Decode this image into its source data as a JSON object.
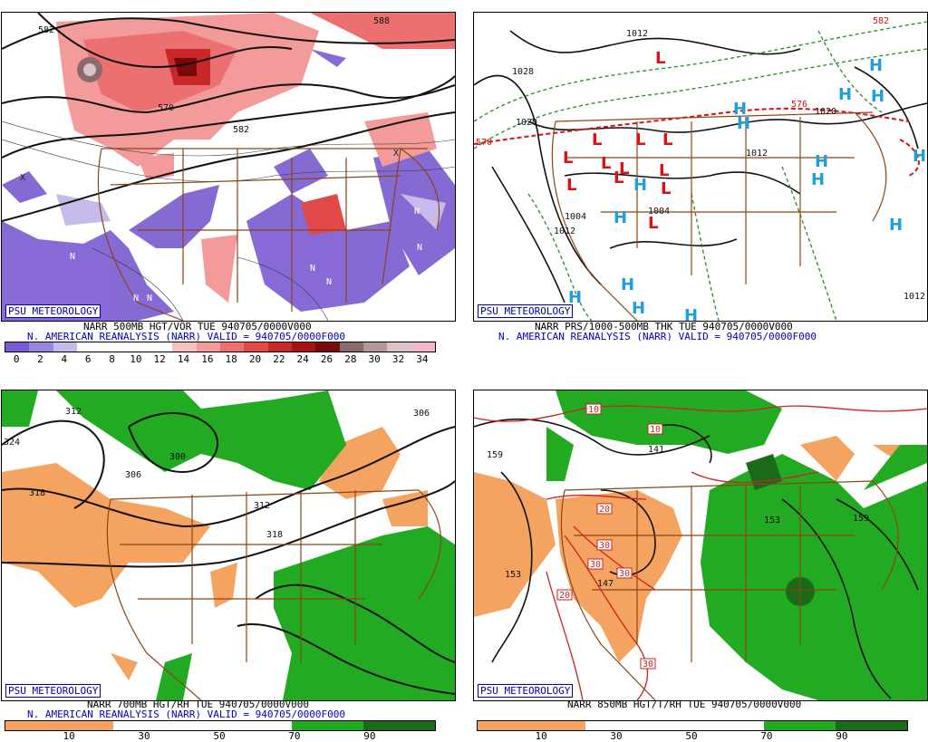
{
  "branding": "PSU METEOROLOGY",
  "source_line": "N. AMERICAN REANALYSIS (NARR) VALID = 940705/0000F000",
  "panels": {
    "vorticity": {
      "title": "NARR 500MB HGT/VOR TUE 940705/0000V000",
      "contour_labels": [
        "582",
        "570",
        "582",
        "588"
      ],
      "n_labels": [
        "N",
        "N",
        "N",
        "N",
        "N",
        "N",
        "N",
        "N",
        "N"
      ],
      "x_labels": [
        "X",
        "X"
      ],
      "colorbar_ticks": [
        "0",
        "2",
        "4",
        "6",
        "8",
        "10",
        "12",
        "14",
        "16",
        "18",
        "20",
        "22",
        "24",
        "26",
        "28",
        "30",
        "32",
        "34"
      ],
      "colorbar_colors": [
        "#7a5ad0",
        "#9b86dd",
        "#c6baea",
        "#ffffff",
        "#ffffff",
        "#ffffff",
        "#ffffff",
        "#f8c0c0",
        "#f39a9a",
        "#ec7070",
        "#e24848",
        "#c82828",
        "#a51414",
        "#7a0a0a",
        "#8a6a6a",
        "#b29898",
        "#d8c4c4",
        "#f4b8c8"
      ]
    },
    "pressure": {
      "title": "NARR PRS/1000-500MB THK TUE 940705/0000V000",
      "isobar_labels": [
        "1012",
        "1028",
        "1020",
        "1012",
        "1004",
        "1012",
        "1020",
        "1004",
        "1012"
      ],
      "thickness_labels": [
        "570",
        "576",
        "582"
      ],
      "low_letter": "L",
      "high_letter": "H"
    },
    "rh700": {
      "title": "NARR 700MB HGT/RH TUE 940705/0000V000",
      "contour_labels": [
        "312",
        "324",
        "318",
        "306",
        "300",
        "306",
        "312",
        "318"
      ],
      "colorbar_ticks": [
        "10",
        "30",
        "50",
        "70",
        "90"
      ]
    },
    "temp850": {
      "title": "NARR 850MB HGT/T/RH TUE 940705/0000V000",
      "contour_labels": [
        "159",
        "153",
        "147",
        "141",
        "153",
        "159"
      ],
      "isotherm_labels": [
        "10",
        "20",
        "30",
        "30",
        "30",
        "20",
        "30",
        "10"
      ],
      "colorbar_ticks": [
        "10",
        "30",
        "50",
        "70",
        "90"
      ]
    }
  },
  "colors": {
    "map_lines": "#8b4513",
    "low": "#dd1111",
    "high": "#1ea0dc",
    "moist": "#22aa22",
    "dry": "#f4a460"
  }
}
